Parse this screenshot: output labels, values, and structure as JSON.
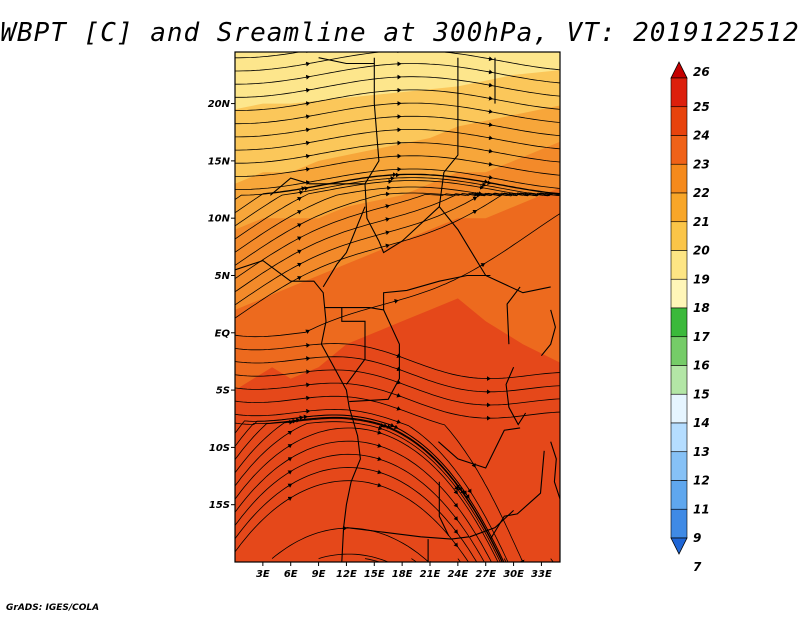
{
  "title": "WBPT [C] and Sreamline at 300hPa, VT: 2019122512",
  "footer": "GrADS: IGES/COLA",
  "map": {
    "lat_ticks": [
      "20N",
      "15N",
      "10N",
      "5N",
      "EQ",
      "5S",
      "10S",
      "15S"
    ],
    "lat_values": [
      20,
      15,
      10,
      5,
      0,
      -5,
      -10,
      -15
    ],
    "lat_range": [
      -20,
      24.5
    ],
    "lon_ticks": [
      "3E",
      "6E",
      "9E",
      "12E",
      "15E",
      "18E",
      "21E",
      "24E",
      "27E",
      "30E",
      "33E"
    ],
    "lon_values": [
      3,
      6,
      9,
      12,
      15,
      18,
      21,
      24,
      27,
      30,
      33
    ],
    "lon_range": [
      0,
      35
    ],
    "fill_colors": {
      "t19": "#fde68c",
      "t20": "#fbc75a",
      "t21": "#f7a63a",
      "t22": "#f38a2a",
      "t23": "#ed6a1e",
      "t24": "#e5481a"
    },
    "streamline_color": "#000000",
    "boundary_color": "#000000"
  },
  "colorbar": {
    "labels": [
      "26",
      "25",
      "24",
      "23",
      "22",
      "21",
      "20",
      "19",
      "18",
      "17",
      "16",
      "15",
      "14",
      "13",
      "12",
      "11",
      "9",
      "7"
    ],
    "colors": [
      "#c40000",
      "#dc1f0c",
      "#e8430d",
      "#f06218",
      "#f58a1c",
      "#f8a628",
      "#fbc548",
      "#fde584",
      "#fff6b8",
      "#3bb93b",
      "#75cc68",
      "#b3e6a6",
      "#e6f5ff",
      "#b5ddff",
      "#86c1f6",
      "#5fa7ee",
      "#3f8ae5",
      "#1f66d6"
    ]
  }
}
